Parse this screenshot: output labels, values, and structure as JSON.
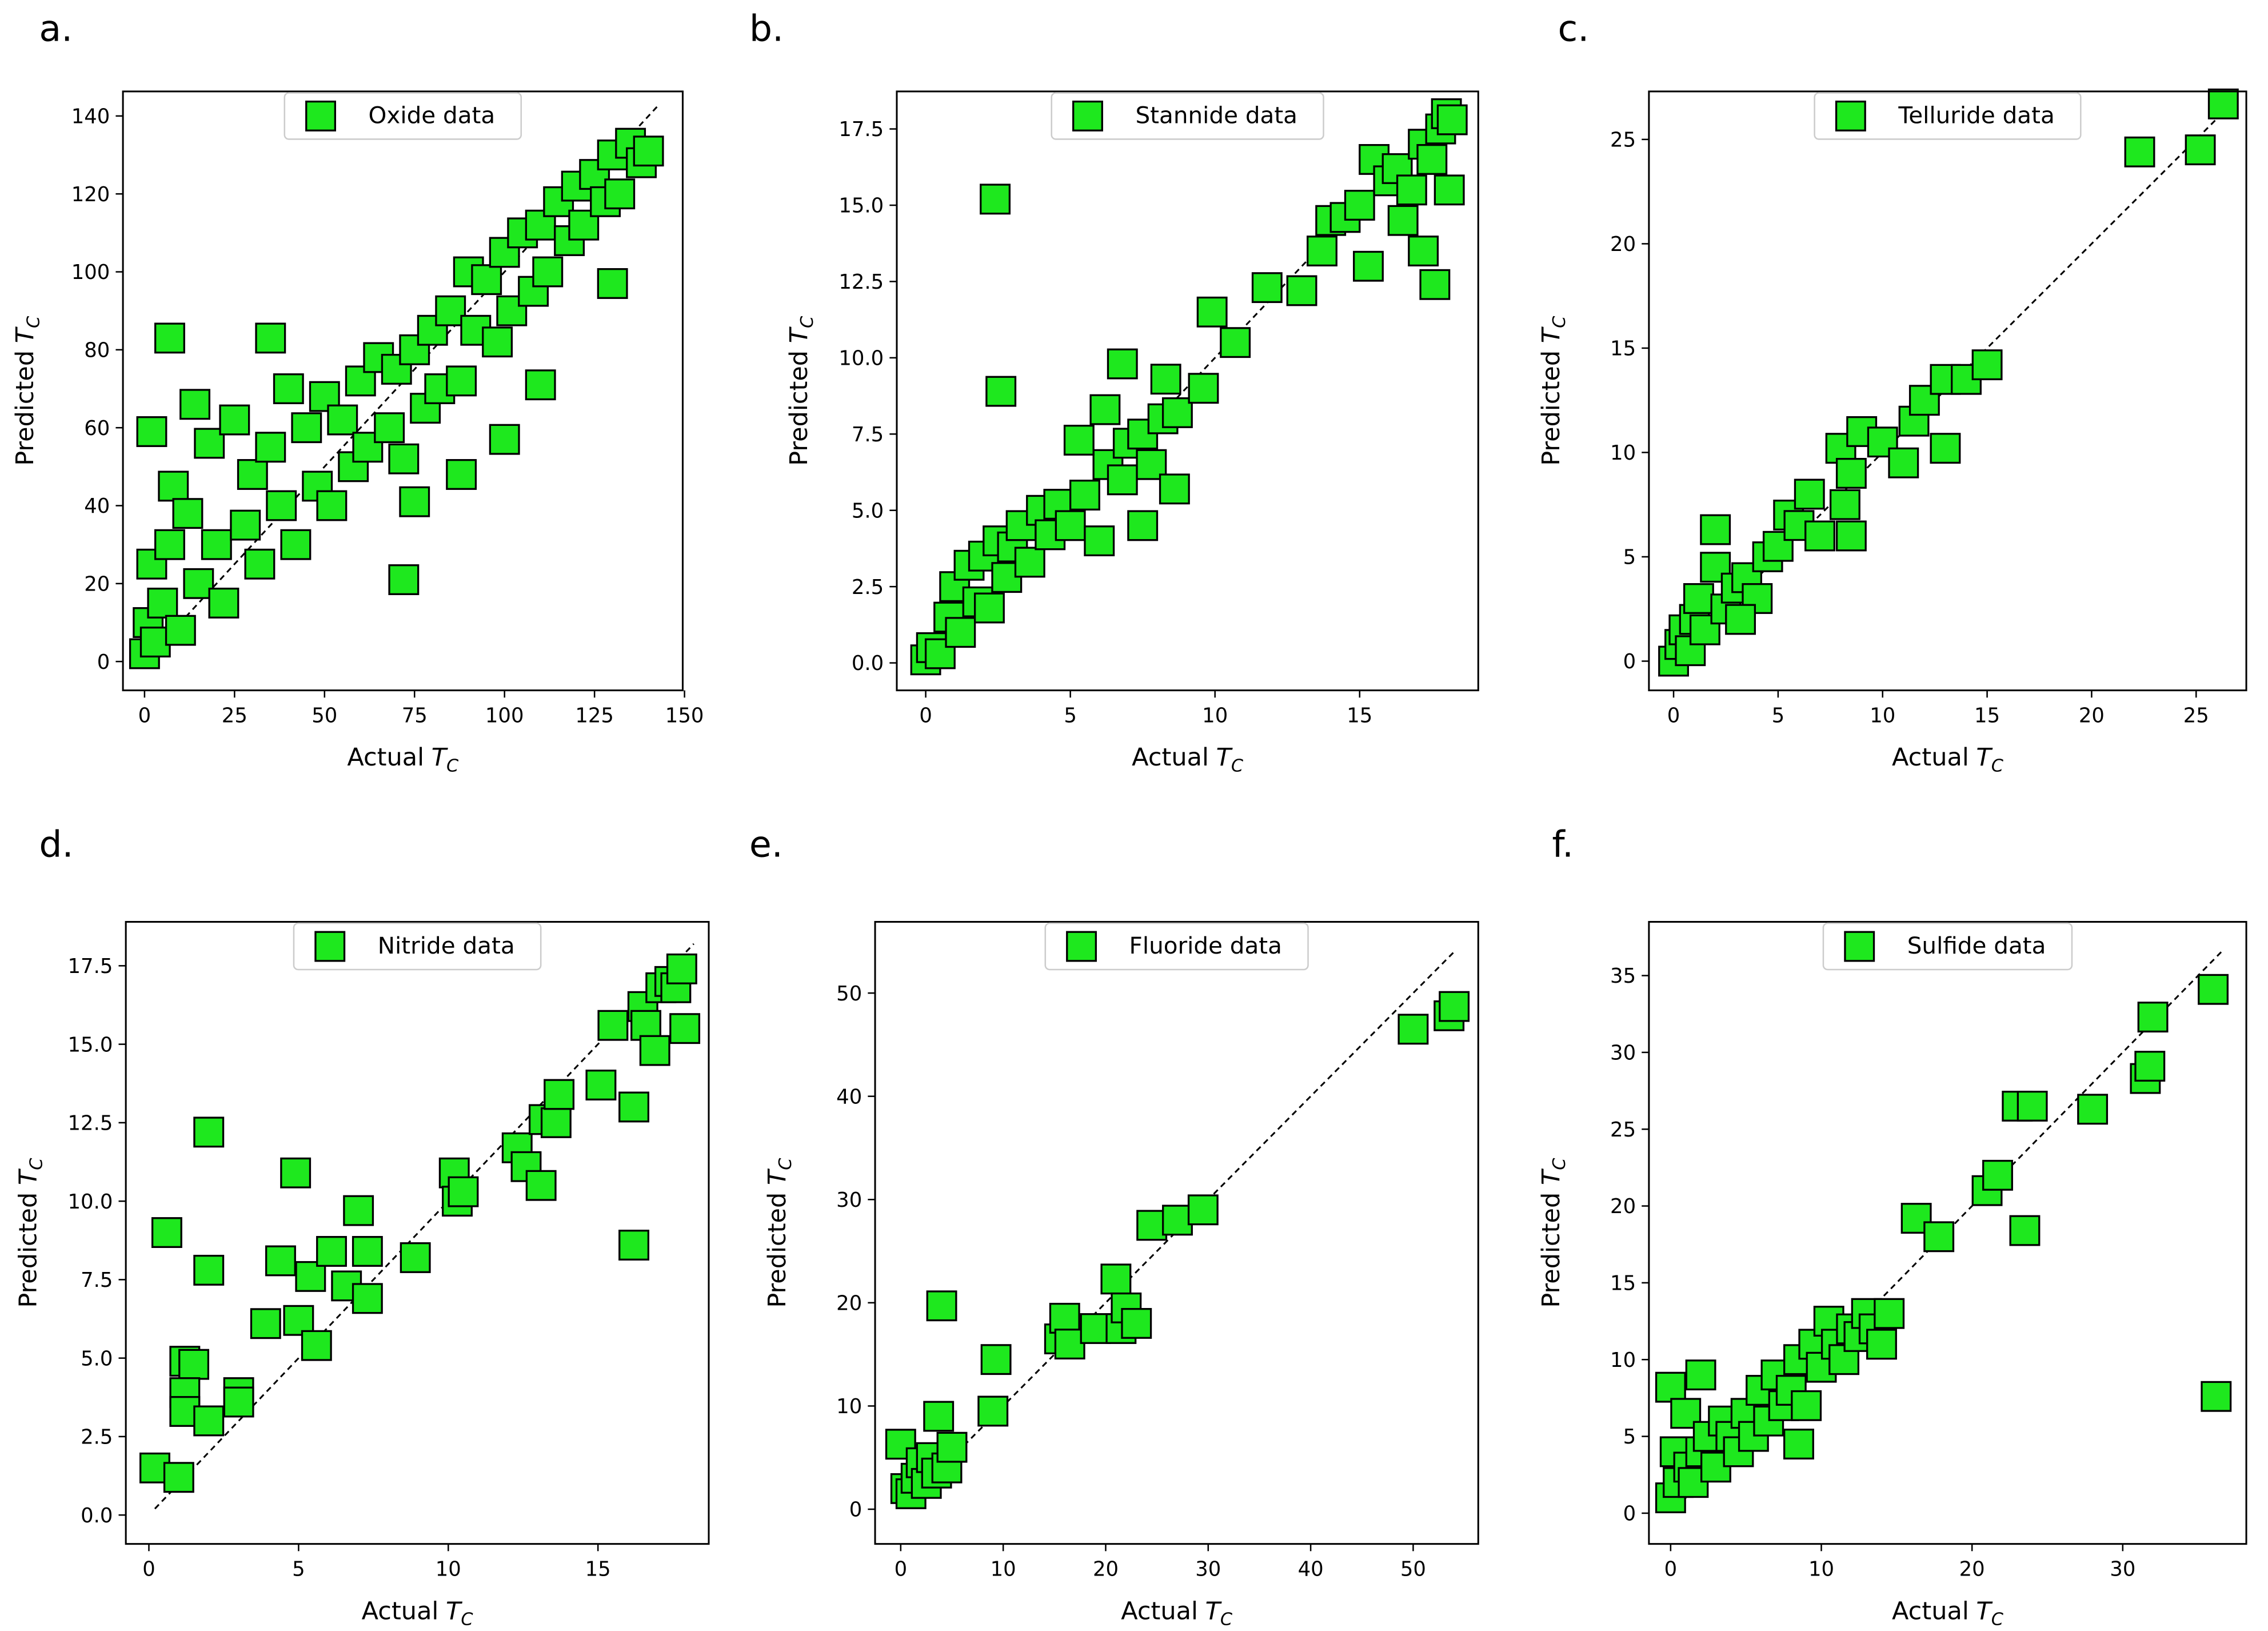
{
  "chart_data": [
    {
      "type": "scatter",
      "panel_label": "a.",
      "xlabel": "Actual",
      "ylabel": "Predicted",
      "symbol": "T",
      "symbol_sub": "C",
      "xlim": [
        -6,
        149.5
      ],
      "ylim": [
        -7.4,
        146.3
      ],
      "xticks": [
        0,
        25,
        50,
        75,
        100,
        125,
        150
      ],
      "yticks": [
        0,
        20,
        40,
        60,
        80,
        100,
        120,
        140
      ],
      "diagonal": [
        0,
        143
      ],
      "legend": "upper center",
      "x": [
        0,
        1,
        2,
        3,
        5,
        7,
        8,
        10,
        12,
        15,
        18,
        20,
        22,
        25,
        28,
        30,
        32,
        35,
        38,
        40,
        42,
        45,
        48,
        50,
        52,
        55,
        58,
        60,
        62,
        65,
        68,
        70,
        72,
        75,
        78,
        80,
        82,
        85,
        88,
        90,
        92,
        95,
        98,
        100,
        102,
        105,
        108,
        110,
        112,
        115,
        118,
        120,
        122,
        125,
        128,
        130,
        132,
        135,
        138,
        140,
        7,
        72,
        35,
        2,
        14,
        130,
        110,
        100,
        88,
        75
      ],
      "series": [
        {
          "name": "Oxide data",
          "color": "#1ee81e",
          "values": [
            2,
            10,
            25,
            5,
            15,
            30,
            45,
            8,
            38,
            20,
            56,
            30,
            15,
            62,
            35,
            48,
            25,
            55,
            40,
            70,
            30,
            60,
            45,
            68,
            40,
            62,
            50,
            72,
            55,
            78,
            60,
            75,
            52,
            80,
            65,
            85,
            70,
            90,
            72,
            100,
            85,
            98,
            82,
            105,
            90,
            110,
            95,
            112,
            100,
            118,
            108,
            122,
            112,
            125,
            118,
            130,
            120,
            133,
            128,
            131,
            83,
            21,
            83,
            59,
            66,
            97,
            71,
            57,
            48,
            41
          ]
        }
      ]
    },
    {
      "type": "scatter",
      "panel_label": "b.",
      "xlabel": "Actual",
      "ylabel": "Predicted",
      "symbol": "T",
      "symbol_sub": "C",
      "xlim": [
        -1,
        19.1
      ],
      "ylim": [
        -0.9,
        18.73
      ],
      "xticks": [
        0,
        5,
        10,
        15
      ],
      "yticks": [
        {
          "value": 0,
          "label": "0.0"
        },
        2.5,
        {
          "value": 5,
          "label": "5.0"
        },
        7.5,
        {
          "value": 10,
          "label": "10.0"
        },
        12.5,
        {
          "value": 15,
          "label": "15.0"
        },
        17.5
      ],
      "diagonal": [
        0,
        18.5
      ],
      "legend": "upper center",
      "x": [
        0,
        0.2,
        0.5,
        0.8,
        1,
        1.2,
        1.5,
        1.8,
        2,
        2.2,
        2.5,
        2.8,
        3,
        3.3,
        3.6,
        4,
        4.3,
        4.6,
        5,
        5.5,
        6,
        6.3,
        6.8,
        7,
        7.5,
        7.8,
        8.2,
        8.7,
        9.6,
        9.9,
        10.7,
        11.8,
        13,
        13.7,
        14,
        14.5,
        15,
        15.5,
        16,
        16.3,
        16.8,
        17.2,
        17.5,
        17.8,
        18,
        18.2,
        2.4,
        2.6,
        6.8,
        8.3,
        7.5,
        8.6,
        17.6,
        17.2,
        15.3,
        16.5,
        18.1,
        5.3,
        6.2
      ],
      "series": [
        {
          "name": "Stannide data",
          "color": "#1ee81e",
          "values": [
            0.1,
            0.5,
            0.3,
            1.5,
            2.5,
            1.0,
            3.2,
            2,
            3.5,
            1.8,
            4,
            2.8,
            3.8,
            4.5,
            3.3,
            5,
            4.2,
            5.2,
            4.5,
            5.5,
            4,
            6.5,
            6,
            7.2,
            7.5,
            6.5,
            8,
            8.2,
            9,
            11.5,
            10.5,
            12.3,
            12.2,
            13.5,
            14.5,
            14.6,
            15,
            16.5,
            15.8,
            16.2,
            15.5,
            17,
            16.5,
            17.5,
            18,
            17.8,
            15.2,
            8.9,
            9.8,
            9.3,
            4.5,
            5.7,
            12.4,
            13.5,
            13,
            14.5,
            15.5,
            7.3,
            8.3
          ]
        }
      ]
    },
    {
      "type": "scatter",
      "panel_label": "c.",
      "xlabel": "Actual",
      "ylabel": "Predicted",
      "symbol": "T",
      "symbol_sub": "C",
      "xlim": [
        -1.18,
        27.4
      ],
      "ylim": [
        -1.4,
        27.3
      ],
      "xticks": [
        0,
        5,
        10,
        15,
        20,
        25
      ],
      "yticks": [
        0,
        5,
        10,
        15,
        20,
        25
      ],
      "diagonal": [
        0,
        26
      ],
      "legend": "upper center",
      "x": [
        0,
        0.3,
        0.5,
        0.8,
        1,
        1.2,
        1.5,
        2,
        2,
        2.5,
        3,
        3.5,
        4,
        4.5,
        5,
        5.5,
        6,
        6.5,
        7,
        8,
        8.5,
        8.5,
        9,
        10,
        11,
        11.5,
        12,
        13,
        13,
        14,
        15,
        22.3,
        25.2,
        26.3,
        8.2,
        3.2
      ],
      "series": [
        {
          "name": "Telluride data",
          "color": "#1ee81e",
          "values": [
            0,
            0.8,
            1.5,
            0.5,
            2,
            3,
            1.5,
            4.5,
            6.3,
            2.5,
            3.5,
            4,
            3,
            5,
            5.5,
            7,
            6.5,
            8,
            6,
            10.2,
            9,
            6,
            11,
            10.5,
            9.5,
            11.5,
            12.5,
            13.5,
            10.2,
            13.5,
            14.2,
            24.4,
            24.5,
            26.7,
            7.5,
            2
          ]
        }
      ]
    },
    {
      "type": "scatter",
      "panel_label": "d.",
      "xlabel": "Actual",
      "ylabel": "Predicted",
      "symbol": "T",
      "symbol_sub": "C",
      "xlim": [
        -0.77,
        18.7
      ],
      "ylim": [
        -0.92,
        18.9
      ],
      "xticks": [
        0,
        5,
        10,
        15
      ],
      "yticks": [
        {
          "value": 0,
          "label": "0.0"
        },
        2.5,
        {
          "value": 5,
          "label": "5.0"
        },
        7.5,
        {
          "value": 10,
          "label": "10.0"
        },
        12.5,
        {
          "value": 15,
          "label": "15.0"
        },
        17.5
      ],
      "diagonal": [
        0.2,
        18.2
      ],
      "legend": "upper center",
      "x": [
        0.2,
        1,
        0.6,
        2,
        2,
        1.2,
        1.5,
        1.2,
        1.2,
        2,
        3,
        3,
        3.9,
        4.4,
        4.9,
        5,
        5.4,
        5.6,
        6.1,
        6.6,
        7,
        7.3,
        7.3,
        8.9,
        10.2,
        10.3,
        10.5,
        12.3,
        12.6,
        13.1,
        13.2,
        13.6,
        13.7,
        15.1,
        15.5,
        16.2,
        16.2,
        16.5,
        16.6,
        16.9,
        17.1,
        17.4,
        17.6,
        17.8,
        17.9
      ],
      "series": [
        {
          "name": "Nitride data",
          "color": "#1ee81e",
          "values": [
            1.5,
            1.2,
            9,
            12.2,
            7.8,
            4.9,
            4.8,
            3.9,
            3.3,
            3,
            3.9,
            3.6,
            6.1,
            8.1,
            10.9,
            6.2,
            7.6,
            5.4,
            8.4,
            7.3,
            9.7,
            8.4,
            6.9,
            8.2,
            10.9,
            10,
            10.3,
            11.7,
            11.1,
            10.5,
            12.6,
            12.5,
            13.4,
            13.7,
            15.6,
            13,
            8.6,
            16.2,
            15.6,
            14.8,
            16.8,
            17,
            16.8,
            17.4,
            15.5
          ]
        }
      ]
    },
    {
      "type": "scatter",
      "panel_label": "e.",
      "xlabel": "Actual",
      "ylabel": "Predicted",
      "symbol": "T",
      "symbol_sub": "C",
      "xlim": [
        -2.5,
        56.35
      ],
      "ylim": [
        -3.36,
        56.9
      ],
      "xticks": [
        0,
        10,
        20,
        30,
        40,
        50
      ],
      "yticks": [
        0,
        10,
        20,
        30,
        40,
        50
      ],
      "diagonal": [
        2,
        54
      ],
      "legend": "upper center",
      "x": [
        0,
        0.5,
        1,
        1.5,
        2,
        2.5,
        3,
        3.5,
        3.7,
        4,
        4.5,
        5,
        9,
        9.3,
        15.5,
        16,
        16.5,
        19,
        21,
        21.5,
        22,
        23,
        24.5,
        27,
        29.5,
        50,
        53.5,
        54
      ],
      "series": [
        {
          "name": "Fluoride data",
          "color": "#1ee81e",
          "values": [
            6.3,
            2,
            1.5,
            3,
            4.5,
            2.5,
            5,
            3.5,
            9,
            19.7,
            4,
            6,
            9.5,
            14.5,
            16.5,
            18.5,
            16,
            17.5,
            22.3,
            17.5,
            19.5,
            18,
            27.5,
            28,
            29,
            46.5,
            47.8,
            48.7
          ]
        }
      ]
    },
    {
      "type": "scatter",
      "panel_label": "f.",
      "xlabel": "Actual",
      "ylabel": "Predicted",
      "symbol": "T",
      "symbol_sub": "C",
      "xlim": [
        -1.44,
        38.2
      ],
      "ylim": [
        -2,
        38.5
      ],
      "xticks": [
        0,
        10,
        20,
        30
      ],
      "yticks": [
        0,
        5,
        10,
        15,
        20,
        25,
        30,
        35
      ],
      "diagonal": [
        0.5,
        36.6
      ],
      "legend": "upper center",
      "x": [
        0,
        0,
        0.3,
        0.5,
        1,
        1.2,
        1.5,
        2,
        2,
        2.5,
        3,
        3.5,
        4,
        4.5,
        5,
        5.5,
        6,
        6.5,
        7,
        7.5,
        8,
        8.5,
        8.5,
        9,
        9.5,
        10,
        10.5,
        11,
        11.5,
        12,
        12.5,
        13,
        13.5,
        14,
        14.5,
        16.3,
        17.8,
        21,
        21.7,
        23,
        24,
        23.5,
        28,
        31.5,
        31.8,
        32,
        36,
        36.2
      ],
      "series": [
        {
          "name": "Sulfide data",
          "color": "#1ee81e",
          "values": [
            1,
            8.2,
            4,
            2,
            6.5,
            3,
            2,
            4,
            9,
            5,
            3,
            6,
            5,
            4,
            6.5,
            5,
            8,
            6,
            9,
            7,
            8,
            10,
            4.5,
            7,
            11,
            9.5,
            12.5,
            11,
            10,
            12,
            11.5,
            13,
            12,
            11,
            13,
            19.2,
            18,
            21,
            22,
            26.5,
            26.5,
            18.4,
            26.3,
            28.3,
            29.1,
            32.3,
            34.1,
            7.6
          ]
        }
      ]
    }
  ]
}
